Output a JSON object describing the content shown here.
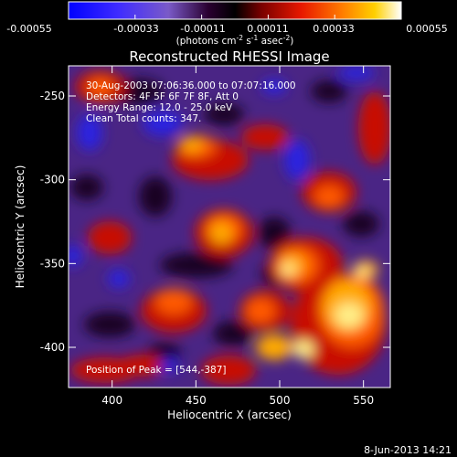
{
  "colorbar": {
    "tick_labels": [
      "-0.00055",
      "-0.00033",
      "-0.00011",
      "0.00011",
      "0.00033",
      "0.00055"
    ],
    "units_prefix": "(photons cm",
    "units_exp1": "-2",
    "units_mid": " s",
    "units_exp2": "-1",
    "units_mid2": " asec",
    "units_exp3": "-2",
    "units_suffix": ")",
    "range": [
      -0.00055,
      0.00055
    ]
  },
  "plot": {
    "title": "Reconstructed RHESSI Image",
    "info_lines": [
      "30-Aug-2003 07:06:36.000 to 07:07:16.000",
      "Detectors: 4F 5F 6F 7F 8F, Att 0",
      "Energy Range: 12.0 - 25.0 keV",
      "Clean    Total counts: 347."
    ],
    "peak_text": "Position of Peak = [544,-387]",
    "footer_date": "8-Jun-2013 14:21"
  },
  "chart_data": {
    "type": "heatmap",
    "title": "Reconstructed RHESSI Image",
    "xlabel": "Heliocentric X (arcsec)",
    "ylabel": "Heliocentric Y (arcsec)",
    "xlim": [
      374,
      566
    ],
    "ylim": [
      -424,
      -232
    ],
    "xticks": [
      400,
      450,
      500,
      550
    ],
    "yticks": [
      -250,
      -300,
      -350,
      -400
    ],
    "peak": [
      544,
      -387
    ],
    "z_range": [
      -0.00055,
      0.00055
    ],
    "colormap": [
      "#1a1aff",
      "#6a40d8",
      "#3a003a",
      "#a00000",
      "#ff2a00",
      "#ffaa00",
      "#ffffff"
    ]
  }
}
